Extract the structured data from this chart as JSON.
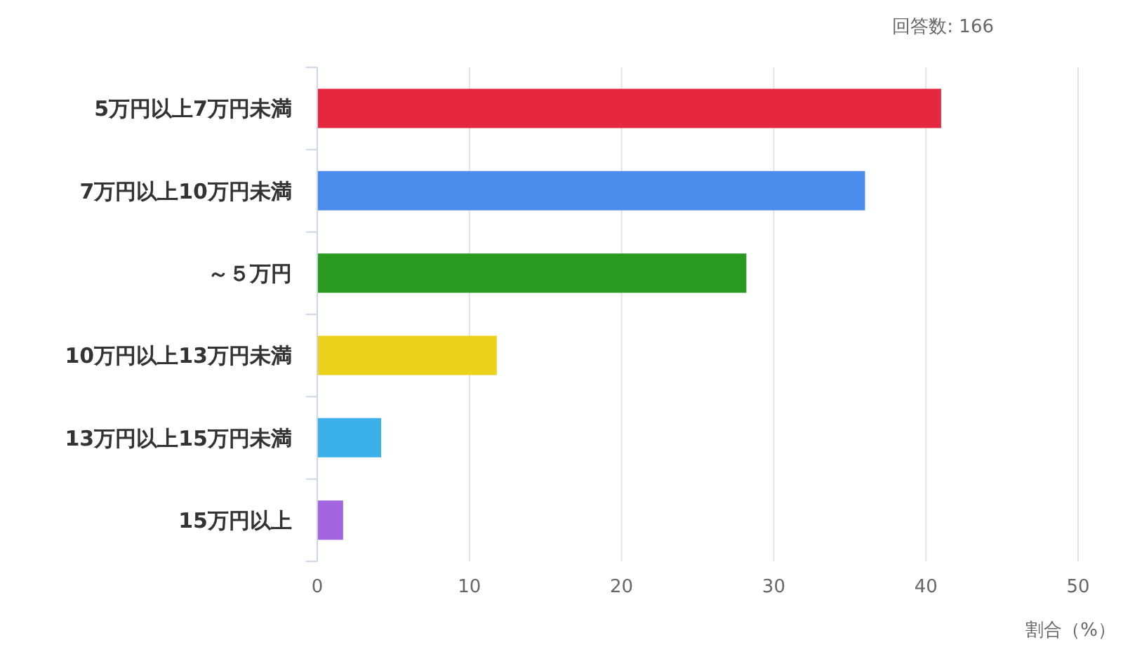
{
  "chart_data": {
    "type": "bar",
    "orientation": "horizontal",
    "categories": [
      "5万円以上7万円未満",
      "7万円以上10万円未満",
      "～５万円",
      "10万円以上13万円未満",
      "13万円以上15万円未満",
      "15万円以上"
    ],
    "values": [
      41,
      36,
      28.2,
      11.8,
      4.2,
      1.7
    ],
    "colors": [
      "#e5283f",
      "#4a8cec",
      "#2a9a22",
      "#ecd21a",
      "#3bb0ea",
      "#a366e0"
    ],
    "xlabel": "割合（%）",
    "annotations": [
      "回答数: 166"
    ],
    "xlim": [
      0,
      50
    ],
    "xticks": [
      0,
      10,
      20,
      30,
      40,
      50
    ],
    "grid": "x"
  }
}
